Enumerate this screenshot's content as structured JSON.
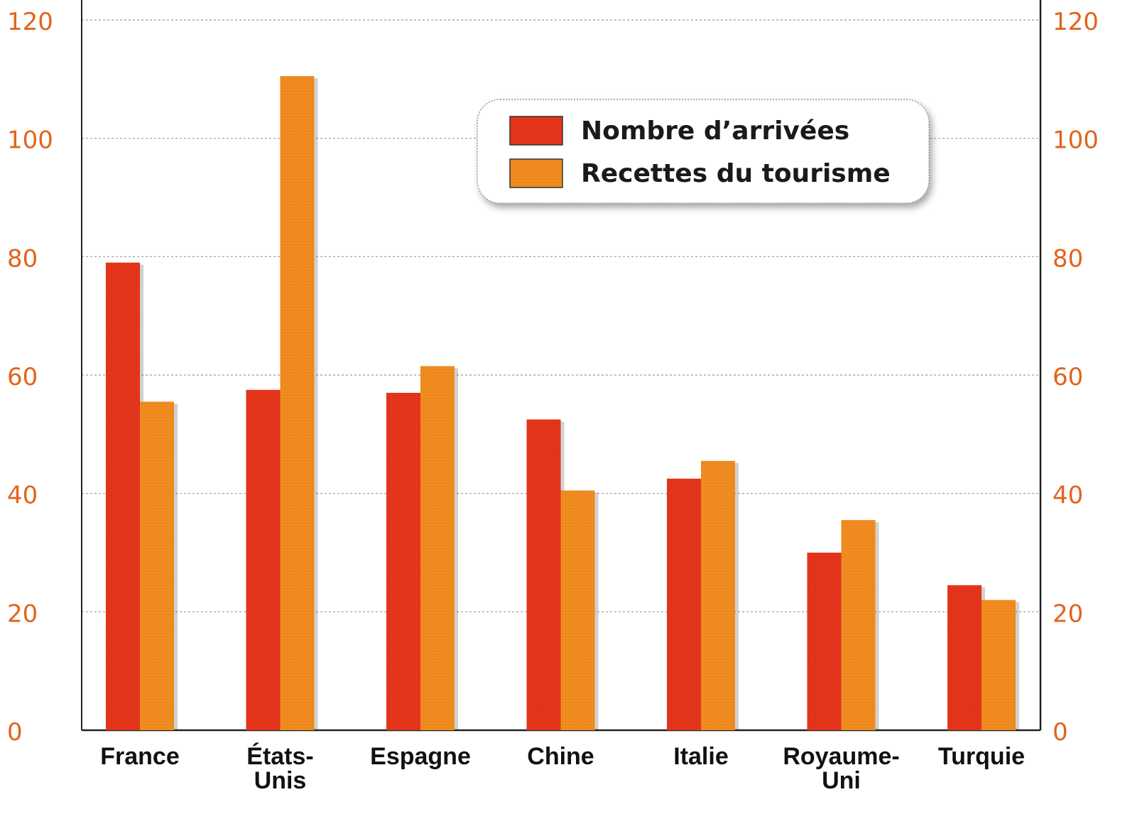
{
  "chart_data": {
    "type": "bar",
    "categories": [
      "France",
      "États-Unis",
      "Espagne",
      "Chine",
      "Italie",
      "Royaume-Uni",
      "Turquie"
    ],
    "category_lines": [
      [
        "France"
      ],
      [
        "États-",
        "Unis"
      ],
      [
        "Espagne"
      ],
      [
        "Chine"
      ],
      [
        "Italie"
      ],
      [
        "Royaume-",
        "Uni"
      ],
      [
        "Turquie"
      ]
    ],
    "series": [
      {
        "name": "Nombre d’arrivées",
        "values": [
          79,
          57.5,
          57,
          52.5,
          42.5,
          30,
          24.5
        ],
        "color": "#e2341b"
      },
      {
        "name": "Recettes du tourisme",
        "values": [
          55.5,
          110.5,
          61.5,
          40.5,
          45.5,
          35.5,
          22
        ],
        "color": "#ef8a1e"
      }
    ],
    "y_ticks": [
      0,
      20,
      40,
      60,
      80,
      100,
      120
    ],
    "ylim": [
      0,
      120
    ],
    "y2lim": [
      0,
      120
    ],
    "title": "",
    "xlabel": "",
    "ylabel": "",
    "grid": true,
    "legend_position": "top-right",
    "colors": {
      "tick_text": "#e2641c",
      "axis": "#222222",
      "grid": "#9a9a9a"
    }
  }
}
